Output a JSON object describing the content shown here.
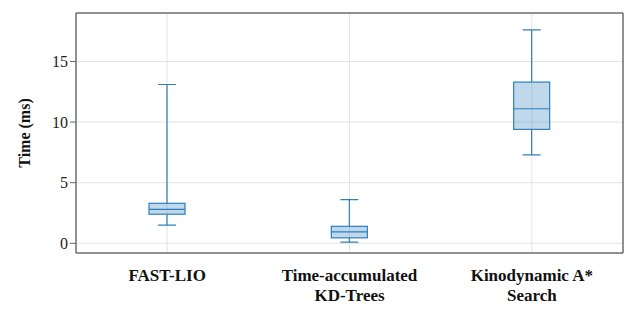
{
  "chart_data": {
    "type": "box",
    "y_label": "Time (ms)",
    "categories": [
      "FAST-LIO",
      "Time-accumulated KD-Trees",
      "Kinodynamic A* Search"
    ],
    "min": [
      1.5,
      0.1,
      7.3
    ],
    "q1": [
      2.4,
      0.45,
      9.4
    ],
    "median": [
      2.8,
      0.95,
      11.1
    ],
    "q3": [
      3.3,
      1.4,
      13.3
    ],
    "max": [
      13.1,
      3.6,
      17.6
    ],
    "color": "#2e7ebc",
    "ylim": [
      -0.8,
      19
    ],
    "yticks": [
      0,
      5,
      10,
      15
    ],
    "grid": true
  }
}
